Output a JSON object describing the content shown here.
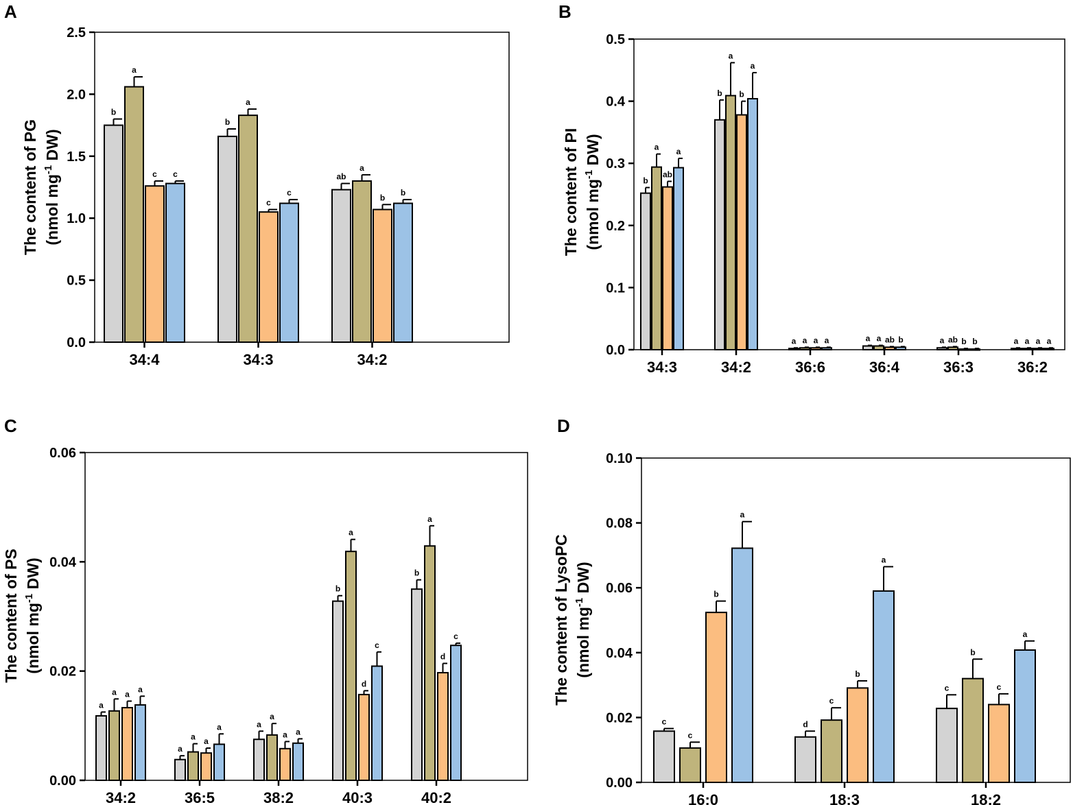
{
  "series_colors": [
    "#d3d3d3",
    "#bfb47c",
    "#fbbd80",
    "#9cc2e6"
  ],
  "chart_data": [
    {
      "panel": "A",
      "type": "bar",
      "ylabel_line1": "The content of PG",
      "ylabel_line2_pre": "(nmol mg",
      "ylabel_sup": "-1",
      "ylabel_line2_post": " DW)",
      "ylim": [
        0,
        2.5
      ],
      "yticks": [
        "0.0",
        "0.5",
        "1.0",
        "1.5",
        "2.0",
        "2.5"
      ],
      "categories": [
        "34:4",
        "34:3",
        "34:2"
      ],
      "values": [
        [
          1.75,
          2.06,
          1.26,
          1.28
        ],
        [
          1.66,
          1.83,
          1.05,
          1.12
        ],
        [
          1.23,
          1.3,
          1.07,
          1.12
        ]
      ],
      "errors": [
        [
          0.05,
          0.08,
          0.04,
          0.02
        ],
        [
          0.06,
          0.05,
          0.02,
          0.03
        ],
        [
          0.05,
          0.05,
          0.04,
          0.03
        ]
      ],
      "letters": [
        [
          "b",
          "a",
          "c",
          "c"
        ],
        [
          "b",
          "a",
          "c",
          "c"
        ],
        [
          "ab",
          "a",
          "b",
          "b"
        ]
      ]
    },
    {
      "panel": "B",
      "type": "bar",
      "ylabel_line1": "The content of PI",
      "ylabel_line2_pre": "(nmol mg",
      "ylabel_sup": "-1",
      "ylabel_line2_post": " DW)",
      "ylim": [
        0,
        0.5
      ],
      "yticks": [
        "0.0",
        "0.1",
        "0.2",
        "0.3",
        "0.4",
        "0.5"
      ],
      "categories": [
        "34:3",
        "34:2",
        "36:6",
        "36:4",
        "36:3",
        "36:2"
      ],
      "values": [
        [
          0.252,
          0.294,
          0.262,
          0.293
        ],
        [
          0.37,
          0.409,
          0.378,
          0.404
        ],
        [
          0.002,
          0.003,
          0.003,
          0.003
        ],
        [
          0.006,
          0.006,
          0.004,
          0.004
        ],
        [
          0.003,
          0.004,
          0.001,
          0.001
        ],
        [
          0.002,
          0.002,
          0.002,
          0.002
        ]
      ],
      "errors": [
        [
          0.009,
          0.021,
          0.009,
          0.015
        ],
        [
          0.032,
          0.053,
          0.022,
          0.042
        ],
        [
          0.001,
          0.001,
          0.001,
          0.001
        ],
        [
          0.001,
          0.001,
          0.001,
          0.001
        ],
        [
          0.001,
          0.001,
          0.001,
          0.001
        ],
        [
          0.001,
          0.001,
          0.001,
          0.001
        ]
      ],
      "letters": [
        [
          "b",
          "a",
          "ab",
          "a"
        ],
        [
          "b",
          "a",
          "b",
          "a"
        ],
        [
          "a",
          "a",
          "a",
          "a"
        ],
        [
          "a",
          "a",
          "ab",
          "b"
        ],
        [
          "a",
          "ab",
          "b",
          "b"
        ],
        [
          "a",
          "a",
          "a",
          "a"
        ]
      ]
    },
    {
      "panel": "C",
      "type": "bar",
      "ylabel_line1": "The content of PS",
      "ylabel_line2_pre": "(nmol mg",
      "ylabel_sup": "-1",
      "ylabel_line2_post": " DW)",
      "ylim": [
        0,
        0.06
      ],
      "yticks": [
        "0.00",
        "0.02",
        "0.04",
        "0.06"
      ],
      "categories": [
        "34:2",
        "36:5",
        "38:2",
        "40:3",
        "40:2"
      ],
      "values": [
        [
          0.0118,
          0.0127,
          0.0133,
          0.0138
        ],
        [
          0.0038,
          0.0052,
          0.005,
          0.0066
        ],
        [
          0.0075,
          0.0083,
          0.0058,
          0.0068
        ],
        [
          0.0328,
          0.0419,
          0.0157,
          0.0209
        ],
        [
          0.035,
          0.0429,
          0.0197,
          0.0247
        ]
      ],
      "errors": [
        [
          0.0007,
          0.0022,
          0.0012,
          0.0016
        ],
        [
          0.0007,
          0.0015,
          0.0009,
          0.0019
        ],
        [
          0.0015,
          0.0021,
          0.0013,
          0.0008
        ],
        [
          0.001,
          0.0022,
          0.0007,
          0.0026
        ],
        [
          0.0017,
          0.0037,
          0.0017,
          0.0004
        ]
      ],
      "letters": [
        [
          "a",
          "a",
          "a",
          "a"
        ],
        [
          "a",
          "a",
          "a",
          "a"
        ],
        [
          "a",
          "a",
          "a",
          "a"
        ],
        [
          "b",
          "a",
          "d",
          "c"
        ],
        [
          "b",
          "a",
          "d",
          "c"
        ]
      ]
    },
    {
      "panel": "D",
      "type": "bar",
      "ylabel_line1": "The content of LysoPC",
      "ylabel_line2_pre": "(nmol mg",
      "ylabel_sup": "-1",
      "ylabel_line2_post": " DW)",
      "ylim": [
        0,
        0.1
      ],
      "yticks": [
        "0.00",
        "0.02",
        "0.04",
        "0.06",
        "0.08",
        "0.10"
      ],
      "categories": [
        "16:0",
        "18:3",
        "18:2"
      ],
      "values": [
        [
          0.0158,
          0.0106,
          0.0524,
          0.0722
        ],
        [
          0.014,
          0.0192,
          0.0291,
          0.059
        ],
        [
          0.0228,
          0.032,
          0.024,
          0.0408
        ]
      ],
      "errors": [
        [
          0.0008,
          0.0018,
          0.0035,
          0.0082
        ],
        [
          0.0018,
          0.0038,
          0.0022,
          0.0075
        ],
        [
          0.0042,
          0.006,
          0.0033,
          0.0028
        ]
      ],
      "letters": [
        [
          "c",
          "c",
          "b",
          "a"
        ],
        [
          "d",
          "c",
          "b",
          "a"
        ],
        [
          "c",
          "b",
          "c",
          "a"
        ]
      ]
    }
  ]
}
